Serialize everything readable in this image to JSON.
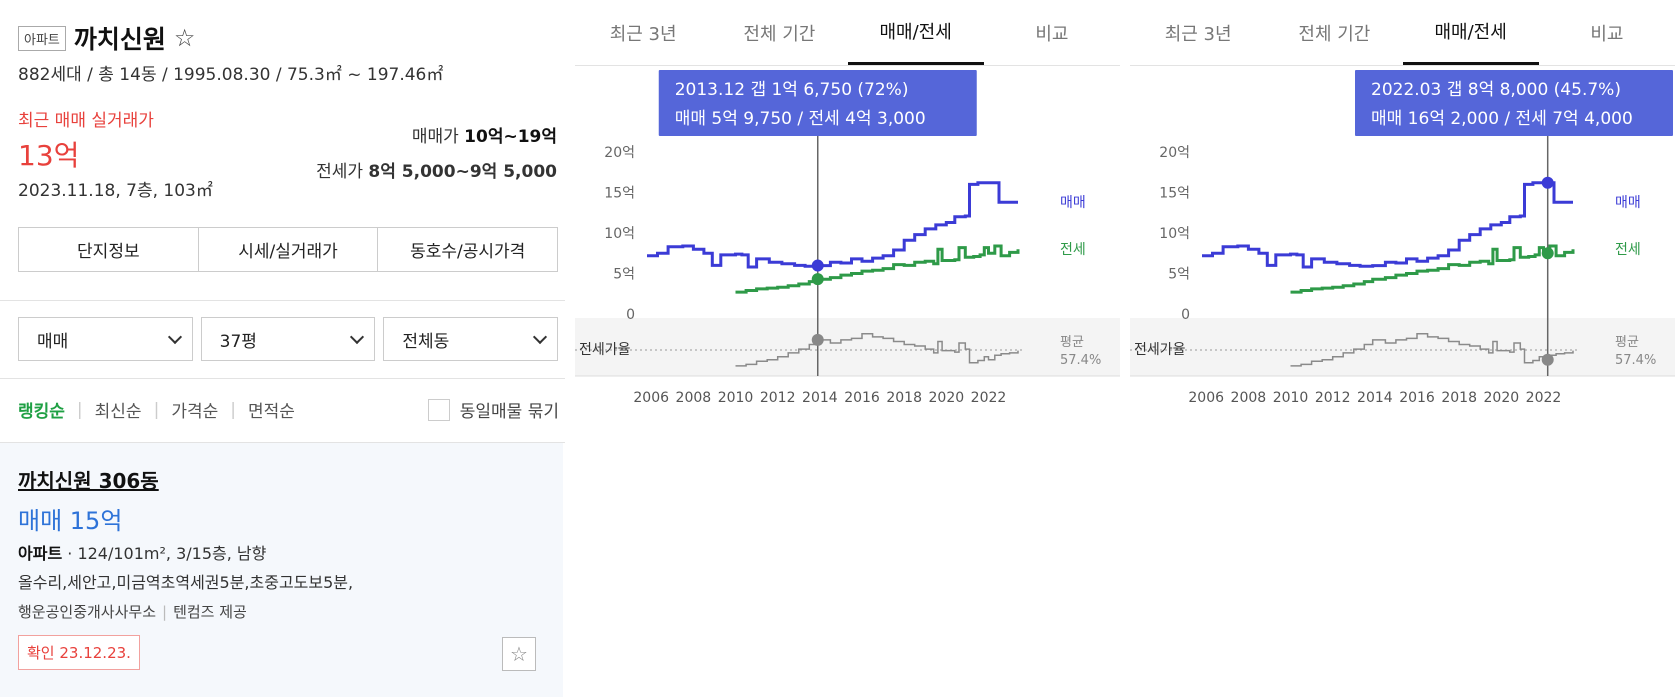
{
  "apt": {
    "type_tag": "아파트",
    "name": "까치신원",
    "summary": "882세대 / 총 14동 / 1995.08.30 / 75.3㎡ ~ 197.46㎡",
    "recent_label": "최근 매매 실거래가",
    "recent_value": "13억",
    "recent_detail": "2023.11.18, 7층, 103㎡",
    "sale_label": "매매가",
    "sale_range": "10억~19억",
    "jeonse_label": "전세가",
    "jeonse_range": "8억 5,000~9억 5,000"
  },
  "detail_tabs": [
    "단지정보",
    "시세/실거래가",
    "동호수/공시가격"
  ],
  "filters": [
    "매매",
    "37평",
    "전체동"
  ],
  "sort": {
    "items": [
      "랭킹순",
      "최신순",
      "가격순",
      "면적순"
    ],
    "group_label": "동일매물 묶기"
  },
  "listing": {
    "title": "까치신원 306동",
    "price": "매매 15억",
    "type": "아파트",
    "info": "124/101m², 3/15층, 남향",
    "desc": "올수리,세안고,미금역초역세권5분,초중고도보5분,",
    "agent": "행운공인중개사사무소",
    "provider": "텐컴즈 제공",
    "confirm": "확인 23.12.23."
  },
  "chart_tabs": [
    "최근 3년",
    "전체 기간",
    "매매/전세",
    "비교"
  ],
  "colors": {
    "sale": "#3b3bd6",
    "jeonse": "#2e9a48",
    "ratio": "#8a8a8a",
    "tooltip": "#5566d9"
  },
  "chart_data": [
    {
      "type": "line",
      "x_ticks": [
        "2006",
        "2008",
        "2010",
        "2012",
        "2014",
        "2016",
        "2018",
        "2020",
        "2022"
      ],
      "y_ticks": [
        "20억",
        "15억",
        "10억",
        "5억",
        "0"
      ],
      "ylim": [
        0,
        20
      ],
      "ratio_label": "전세가율",
      "avg_label": "평균",
      "avg_value": "57.4%",
      "series_labels": {
        "sale": "매매",
        "jeonse": "전세"
      },
      "tooltip": {
        "line1": "2013.12  갭 1억 6,750 (72%)",
        "line2": "매매 5억 9,750 / 전세 4억 3,000"
      },
      "cursor_year": 2013.9,
      "sale": [
        [
          2005.8,
          7.2
        ],
        [
          2006.3,
          7.5
        ],
        [
          2006.8,
          8.3
        ],
        [
          2007.5,
          8.4
        ],
        [
          2008.0,
          8.0
        ],
        [
          2008.5,
          7.5
        ],
        [
          2008.9,
          6.0
        ],
        [
          2009.3,
          7.3
        ],
        [
          2010.0,
          7.4
        ],
        [
          2010.3,
          7.3
        ],
        [
          2010.6,
          5.8
        ],
        [
          2011.0,
          6.8
        ],
        [
          2011.6,
          6.4
        ],
        [
          2012.2,
          6.2
        ],
        [
          2012.8,
          6.0
        ],
        [
          2013.3,
          5.9
        ],
        [
          2013.9,
          5.98
        ],
        [
          2014.5,
          6.4
        ],
        [
          2015.0,
          6.3
        ],
        [
          2015.5,
          6.8
        ],
        [
          2016.0,
          6.5
        ],
        [
          2016.5,
          6.9
        ],
        [
          2017.0,
          7.2
        ],
        [
          2017.5,
          7.9
        ],
        [
          2018.0,
          9.1
        ],
        [
          2018.5,
          9.8
        ],
        [
          2019.0,
          10.5
        ],
        [
          2019.5,
          11.0
        ],
        [
          2020.0,
          11.3
        ],
        [
          2020.4,
          12.0
        ],
        [
          2020.9,
          12.1
        ],
        [
          2021.1,
          16.0
        ],
        [
          2021.5,
          16.2
        ],
        [
          2022.0,
          16.2
        ],
        [
          2022.3,
          16.2
        ],
        [
          2022.5,
          13.8
        ],
        [
          2023.0,
          13.8
        ],
        [
          2023.4,
          13.8
        ]
      ],
      "jeonse": [
        [
          2010.0,
          2.7
        ],
        [
          2010.5,
          2.9
        ],
        [
          2011.0,
          3.1
        ],
        [
          2011.5,
          3.2
        ],
        [
          2012.0,
          3.3
        ],
        [
          2012.5,
          3.5
        ],
        [
          2013.0,
          3.7
        ],
        [
          2013.5,
          4.0
        ],
        [
          2013.9,
          4.3
        ],
        [
          2014.5,
          4.5
        ],
        [
          2015.0,
          4.8
        ],
        [
          2015.5,
          5.0
        ],
        [
          2016.0,
          5.3
        ],
        [
          2016.5,
          5.4
        ],
        [
          2017.0,
          5.6
        ],
        [
          2017.5,
          6.1
        ],
        [
          2018.0,
          6.0
        ],
        [
          2018.5,
          6.4
        ],
        [
          2019.0,
          6.5
        ],
        [
          2019.4,
          6.2
        ],
        [
          2019.6,
          8.0
        ],
        [
          2019.8,
          6.6
        ],
        [
          2020.4,
          6.7
        ],
        [
          2020.6,
          8.2
        ],
        [
          2020.9,
          7.0
        ],
        [
          2021.3,
          7.1
        ],
        [
          2021.6,
          7.3
        ],
        [
          2021.8,
          8.2
        ],
        [
          2022.0,
          7.5
        ],
        [
          2022.3,
          8.4
        ],
        [
          2022.6,
          7.2
        ],
        [
          2023.0,
          7.6
        ],
        [
          2023.4,
          8.0
        ]
      ],
      "ratio": [
        [
          2010.0,
          38
        ],
        [
          2010.5,
          40
        ],
        [
          2011.0,
          44
        ],
        [
          2011.5,
          46
        ],
        [
          2012.0,
          50
        ],
        [
          2012.5,
          55
        ],
        [
          2013.0,
          60
        ],
        [
          2013.5,
          66
        ],
        [
          2013.9,
          72
        ],
        [
          2014.5,
          68
        ],
        [
          2015.0,
          72
        ],
        [
          2015.5,
          74
        ],
        [
          2016.0,
          80
        ],
        [
          2016.5,
          76
        ],
        [
          2017.0,
          74
        ],
        [
          2017.5,
          70
        ],
        [
          2018.0,
          66
        ],
        [
          2018.5,
          64
        ],
        [
          2019.0,
          60
        ],
        [
          2019.4,
          55
        ],
        [
          2019.6,
          70
        ],
        [
          2019.8,
          58
        ],
        [
          2020.4,
          56
        ],
        [
          2020.6,
          68
        ],
        [
          2020.9,
          60
        ],
        [
          2021.1,
          42
        ],
        [
          2021.5,
          45
        ],
        [
          2021.8,
          50
        ],
        [
          2022.0,
          46
        ],
        [
          2022.3,
          52
        ],
        [
          2022.6,
          54
        ],
        [
          2023.0,
          55
        ],
        [
          2023.4,
          58
        ]
      ]
    },
    {
      "type": "line",
      "x_ticks": [
        "2006",
        "2008",
        "2010",
        "2012",
        "2014",
        "2016",
        "2018",
        "2020",
        "2022"
      ],
      "y_ticks": [
        "20억",
        "15억",
        "10억",
        "5억",
        "0"
      ],
      "ylim": [
        0,
        20
      ],
      "ratio_label": "전세가율",
      "avg_label": "평균",
      "avg_value": "57.4%",
      "series_labels": {
        "sale": "매매",
        "jeonse": "전세"
      },
      "tooltip": {
        "line1": "2022.03  갭 8억 8,000 (45.7%)",
        "line2": "매매 16억 2,000 / 전세 7억 4,000"
      },
      "cursor_year": 2022.2,
      "sale": [
        [
          2005.8,
          7.2
        ],
        [
          2006.3,
          7.5
        ],
        [
          2006.8,
          8.3
        ],
        [
          2007.5,
          8.4
        ],
        [
          2008.0,
          8.0
        ],
        [
          2008.5,
          7.5
        ],
        [
          2008.9,
          6.0
        ],
        [
          2009.3,
          7.3
        ],
        [
          2010.0,
          7.4
        ],
        [
          2010.3,
          7.3
        ],
        [
          2010.6,
          5.8
        ],
        [
          2011.0,
          6.8
        ],
        [
          2011.6,
          6.4
        ],
        [
          2012.2,
          6.2
        ],
        [
          2012.8,
          6.0
        ],
        [
          2013.3,
          5.9
        ],
        [
          2013.9,
          5.98
        ],
        [
          2014.5,
          6.4
        ],
        [
          2015.0,
          6.3
        ],
        [
          2015.5,
          6.8
        ],
        [
          2016.0,
          6.5
        ],
        [
          2016.5,
          6.9
        ],
        [
          2017.0,
          7.2
        ],
        [
          2017.5,
          7.9
        ],
        [
          2018.0,
          9.1
        ],
        [
          2018.5,
          9.8
        ],
        [
          2019.0,
          10.5
        ],
        [
          2019.5,
          11.0
        ],
        [
          2020.0,
          11.3
        ],
        [
          2020.4,
          12.0
        ],
        [
          2020.9,
          12.1
        ],
        [
          2021.1,
          16.0
        ],
        [
          2021.5,
          16.2
        ],
        [
          2022.0,
          16.2
        ],
        [
          2022.3,
          16.2
        ],
        [
          2022.5,
          13.8
        ],
        [
          2023.0,
          13.8
        ],
        [
          2023.4,
          13.8
        ]
      ],
      "jeonse": [
        [
          2010.0,
          2.7
        ],
        [
          2010.5,
          2.9
        ],
        [
          2011.0,
          3.1
        ],
        [
          2011.5,
          3.2
        ],
        [
          2012.0,
          3.3
        ],
        [
          2012.5,
          3.5
        ],
        [
          2013.0,
          3.7
        ],
        [
          2013.5,
          4.0
        ],
        [
          2013.9,
          4.3
        ],
        [
          2014.5,
          4.5
        ],
        [
          2015.0,
          4.8
        ],
        [
          2015.5,
          5.0
        ],
        [
          2016.0,
          5.3
        ],
        [
          2016.5,
          5.4
        ],
        [
          2017.0,
          5.6
        ],
        [
          2017.5,
          6.1
        ],
        [
          2018.0,
          6.0
        ],
        [
          2018.5,
          6.4
        ],
        [
          2019.0,
          6.5
        ],
        [
          2019.4,
          6.2
        ],
        [
          2019.6,
          8.0
        ],
        [
          2019.8,
          6.6
        ],
        [
          2020.4,
          6.7
        ],
        [
          2020.6,
          8.2
        ],
        [
          2020.9,
          7.0
        ],
        [
          2021.3,
          7.1
        ],
        [
          2021.6,
          7.3
        ],
        [
          2021.8,
          8.2
        ],
        [
          2022.0,
          7.5
        ],
        [
          2022.3,
          8.4
        ],
        [
          2022.6,
          7.2
        ],
        [
          2023.0,
          7.6
        ],
        [
          2023.4,
          8.0
        ]
      ],
      "ratio": [
        [
          2010.0,
          38
        ],
        [
          2010.5,
          40
        ],
        [
          2011.0,
          44
        ],
        [
          2011.5,
          46
        ],
        [
          2012.0,
          50
        ],
        [
          2012.5,
          55
        ],
        [
          2013.0,
          60
        ],
        [
          2013.5,
          66
        ],
        [
          2013.9,
          72
        ],
        [
          2014.5,
          68
        ],
        [
          2015.0,
          72
        ],
        [
          2015.5,
          74
        ],
        [
          2016.0,
          80
        ],
        [
          2016.5,
          76
        ],
        [
          2017.0,
          74
        ],
        [
          2017.5,
          70
        ],
        [
          2018.0,
          66
        ],
        [
          2018.5,
          64
        ],
        [
          2019.0,
          60
        ],
        [
          2019.4,
          55
        ],
        [
          2019.6,
          70
        ],
        [
          2019.8,
          58
        ],
        [
          2020.4,
          56
        ],
        [
          2020.6,
          68
        ],
        [
          2020.9,
          60
        ],
        [
          2021.1,
          42
        ],
        [
          2021.5,
          45
        ],
        [
          2021.8,
          50
        ],
        [
          2022.0,
          46
        ],
        [
          2022.3,
          52
        ],
        [
          2022.6,
          54
        ],
        [
          2023.0,
          55
        ],
        [
          2023.4,
          58
        ]
      ]
    }
  ]
}
